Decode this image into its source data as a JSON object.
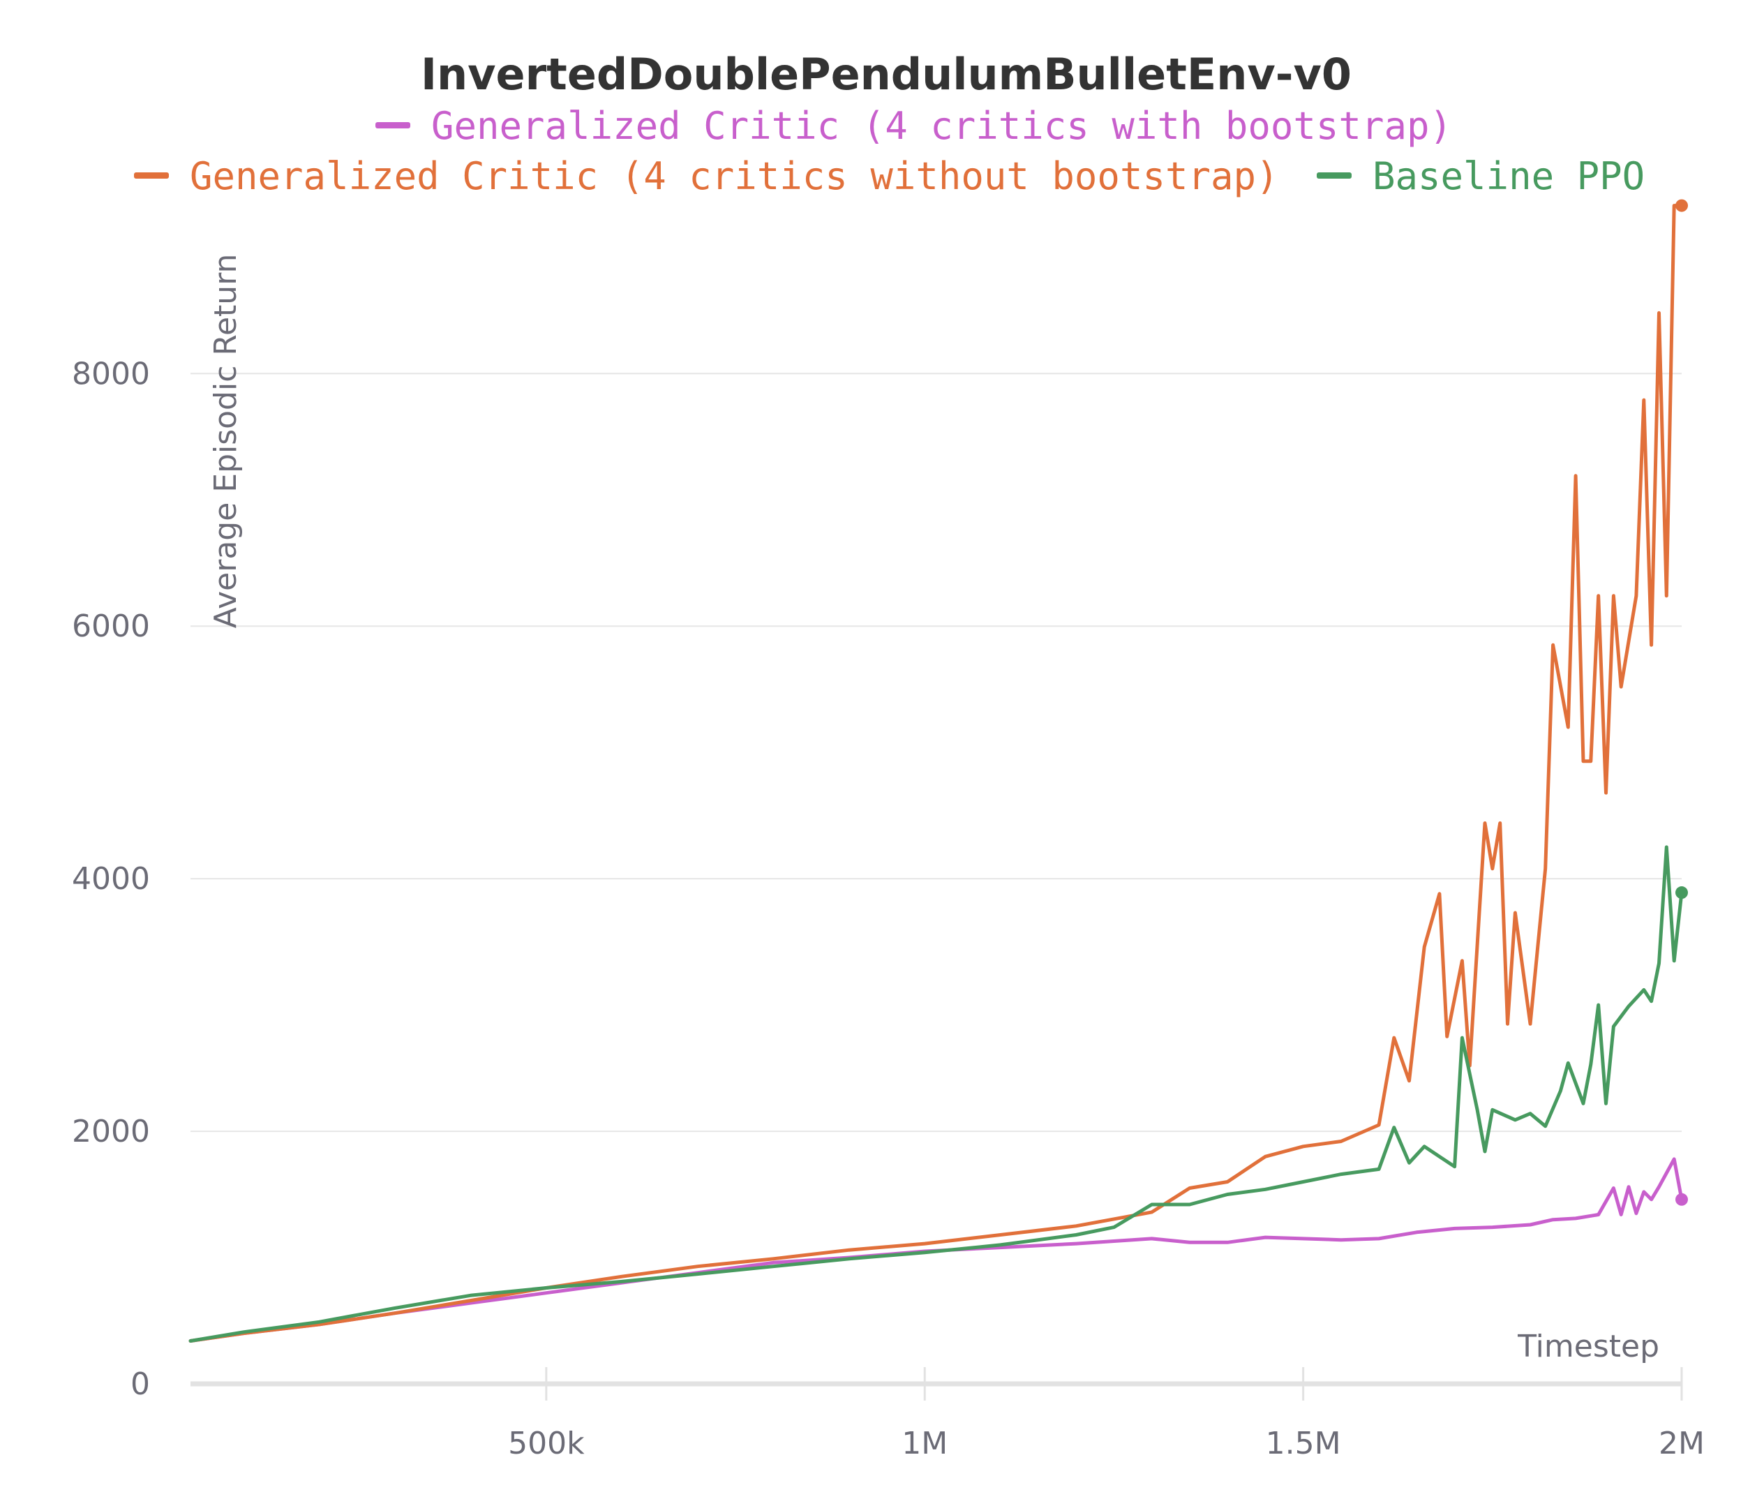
{
  "chart_data": {
    "type": "line",
    "title": "InvertedDoublePendulumBulletEnv-v0",
    "xlabel": "Timestep",
    "ylabel": "Average Episodic Return",
    "xlim": [
      30000,
      2000000
    ],
    "ylim": [
      0,
      9300
    ],
    "x_ticks": [
      500000,
      1000000,
      1500000,
      2000000
    ],
    "x_tick_labels": [
      "500k",
      "1M",
      "1.5M",
      "2M"
    ],
    "y_ticks": [
      0,
      2000,
      4000,
      6000,
      8000
    ],
    "y_tick_labels": [
      "0",
      "2000",
      "4000",
      "6000",
      "8000"
    ],
    "grid": "horizontal",
    "legend_placement": "top-center",
    "series": [
      {
        "name": "Generalized Critic (4 critics with bootstrap)",
        "color": "#c85fcc",
        "points": [
          [
            30000,
            340
          ],
          [
            100000,
            400
          ],
          [
            200000,
            470
          ],
          [
            300000,
            560
          ],
          [
            400000,
            640
          ],
          [
            500000,
            720
          ],
          [
            600000,
            800
          ],
          [
            700000,
            880
          ],
          [
            800000,
            960
          ],
          [
            900000,
            1000
          ],
          [
            1000000,
            1050
          ],
          [
            1100000,
            1080
          ],
          [
            1200000,
            1110
          ],
          [
            1300000,
            1150
          ],
          [
            1350000,
            1120
          ],
          [
            1400000,
            1120
          ],
          [
            1450000,
            1160
          ],
          [
            1500000,
            1150
          ],
          [
            1550000,
            1140
          ],
          [
            1600000,
            1150
          ],
          [
            1650000,
            1200
          ],
          [
            1700000,
            1230
          ],
          [
            1750000,
            1240
          ],
          [
            1800000,
            1260
          ],
          [
            1830000,
            1300
          ],
          [
            1860000,
            1310
          ],
          [
            1890000,
            1340
          ],
          [
            1910000,
            1550
          ],
          [
            1920000,
            1340
          ],
          [
            1930000,
            1560
          ],
          [
            1940000,
            1350
          ],
          [
            1950000,
            1520
          ],
          [
            1960000,
            1460
          ],
          [
            1970000,
            1560
          ],
          [
            1990000,
            1780
          ],
          [
            2000000,
            1460
          ]
        ]
      },
      {
        "name": "Generalized Critic (4 critics without bootstrap)",
        "color": "#e1703a",
        "points": [
          [
            30000,
            340
          ],
          [
            100000,
            400
          ],
          [
            200000,
            470
          ],
          [
            300000,
            560
          ],
          [
            400000,
            660
          ],
          [
            500000,
            760
          ],
          [
            600000,
            850
          ],
          [
            700000,
            930
          ],
          [
            800000,
            990
          ],
          [
            900000,
            1060
          ],
          [
            1000000,
            1110
          ],
          [
            1100000,
            1180
          ],
          [
            1200000,
            1250
          ],
          [
            1300000,
            1360
          ],
          [
            1350000,
            1550
          ],
          [
            1400000,
            1600
          ],
          [
            1450000,
            1800
          ],
          [
            1500000,
            1880
          ],
          [
            1550000,
            1920
          ],
          [
            1600000,
            2050
          ],
          [
            1620000,
            2740
          ],
          [
            1640000,
            2400
          ],
          [
            1660000,
            3460
          ],
          [
            1680000,
            3880
          ],
          [
            1690000,
            2750
          ],
          [
            1710000,
            3350
          ],
          [
            1720000,
            2520
          ],
          [
            1740000,
            4440
          ],
          [
            1750000,
            4080
          ],
          [
            1760000,
            4440
          ],
          [
            1770000,
            2850
          ],
          [
            1780000,
            3730
          ],
          [
            1800000,
            2850
          ],
          [
            1820000,
            4080
          ],
          [
            1830000,
            5850
          ],
          [
            1850000,
            5200
          ],
          [
            1860000,
            7190
          ],
          [
            1870000,
            4930
          ],
          [
            1880000,
            4930
          ],
          [
            1890000,
            6240
          ],
          [
            1900000,
            4680
          ],
          [
            1910000,
            6240
          ],
          [
            1920000,
            5520
          ],
          [
            1940000,
            6240
          ],
          [
            1950000,
            7790
          ],
          [
            1960000,
            5850
          ],
          [
            1970000,
            8480
          ],
          [
            1980000,
            6240
          ],
          [
            1990000,
            9330
          ],
          [
            2000000,
            9330
          ]
        ]
      },
      {
        "name": "Baseline PPO",
        "color": "#479a5f",
        "points": [
          [
            30000,
            340
          ],
          [
            100000,
            410
          ],
          [
            200000,
            490
          ],
          [
            300000,
            600
          ],
          [
            400000,
            700
          ],
          [
            500000,
            760
          ],
          [
            600000,
            810
          ],
          [
            700000,
            870
          ],
          [
            800000,
            930
          ],
          [
            900000,
            990
          ],
          [
            1000000,
            1040
          ],
          [
            1100000,
            1100
          ],
          [
            1200000,
            1180
          ],
          [
            1250000,
            1240
          ],
          [
            1300000,
            1420
          ],
          [
            1350000,
            1420
          ],
          [
            1400000,
            1500
          ],
          [
            1450000,
            1540
          ],
          [
            1500000,
            1600
          ],
          [
            1550000,
            1660
          ],
          [
            1600000,
            1700
          ],
          [
            1620000,
            2030
          ],
          [
            1640000,
            1750
          ],
          [
            1660000,
            1880
          ],
          [
            1680000,
            1800
          ],
          [
            1700000,
            1720
          ],
          [
            1710000,
            2740
          ],
          [
            1730000,
            2170
          ],
          [
            1740000,
            1840
          ],
          [
            1750000,
            2170
          ],
          [
            1780000,
            2090
          ],
          [
            1800000,
            2140
          ],
          [
            1820000,
            2040
          ],
          [
            1840000,
            2320
          ],
          [
            1850000,
            2540
          ],
          [
            1870000,
            2220
          ],
          [
            1880000,
            2530
          ],
          [
            1890000,
            3000
          ],
          [
            1900000,
            2220
          ],
          [
            1910000,
            2830
          ],
          [
            1930000,
            2990
          ],
          [
            1950000,
            3120
          ],
          [
            1960000,
            3030
          ],
          [
            1970000,
            3330
          ],
          [
            1980000,
            4250
          ],
          [
            1990000,
            3350
          ],
          [
            2000000,
            3890
          ]
        ]
      }
    ]
  }
}
